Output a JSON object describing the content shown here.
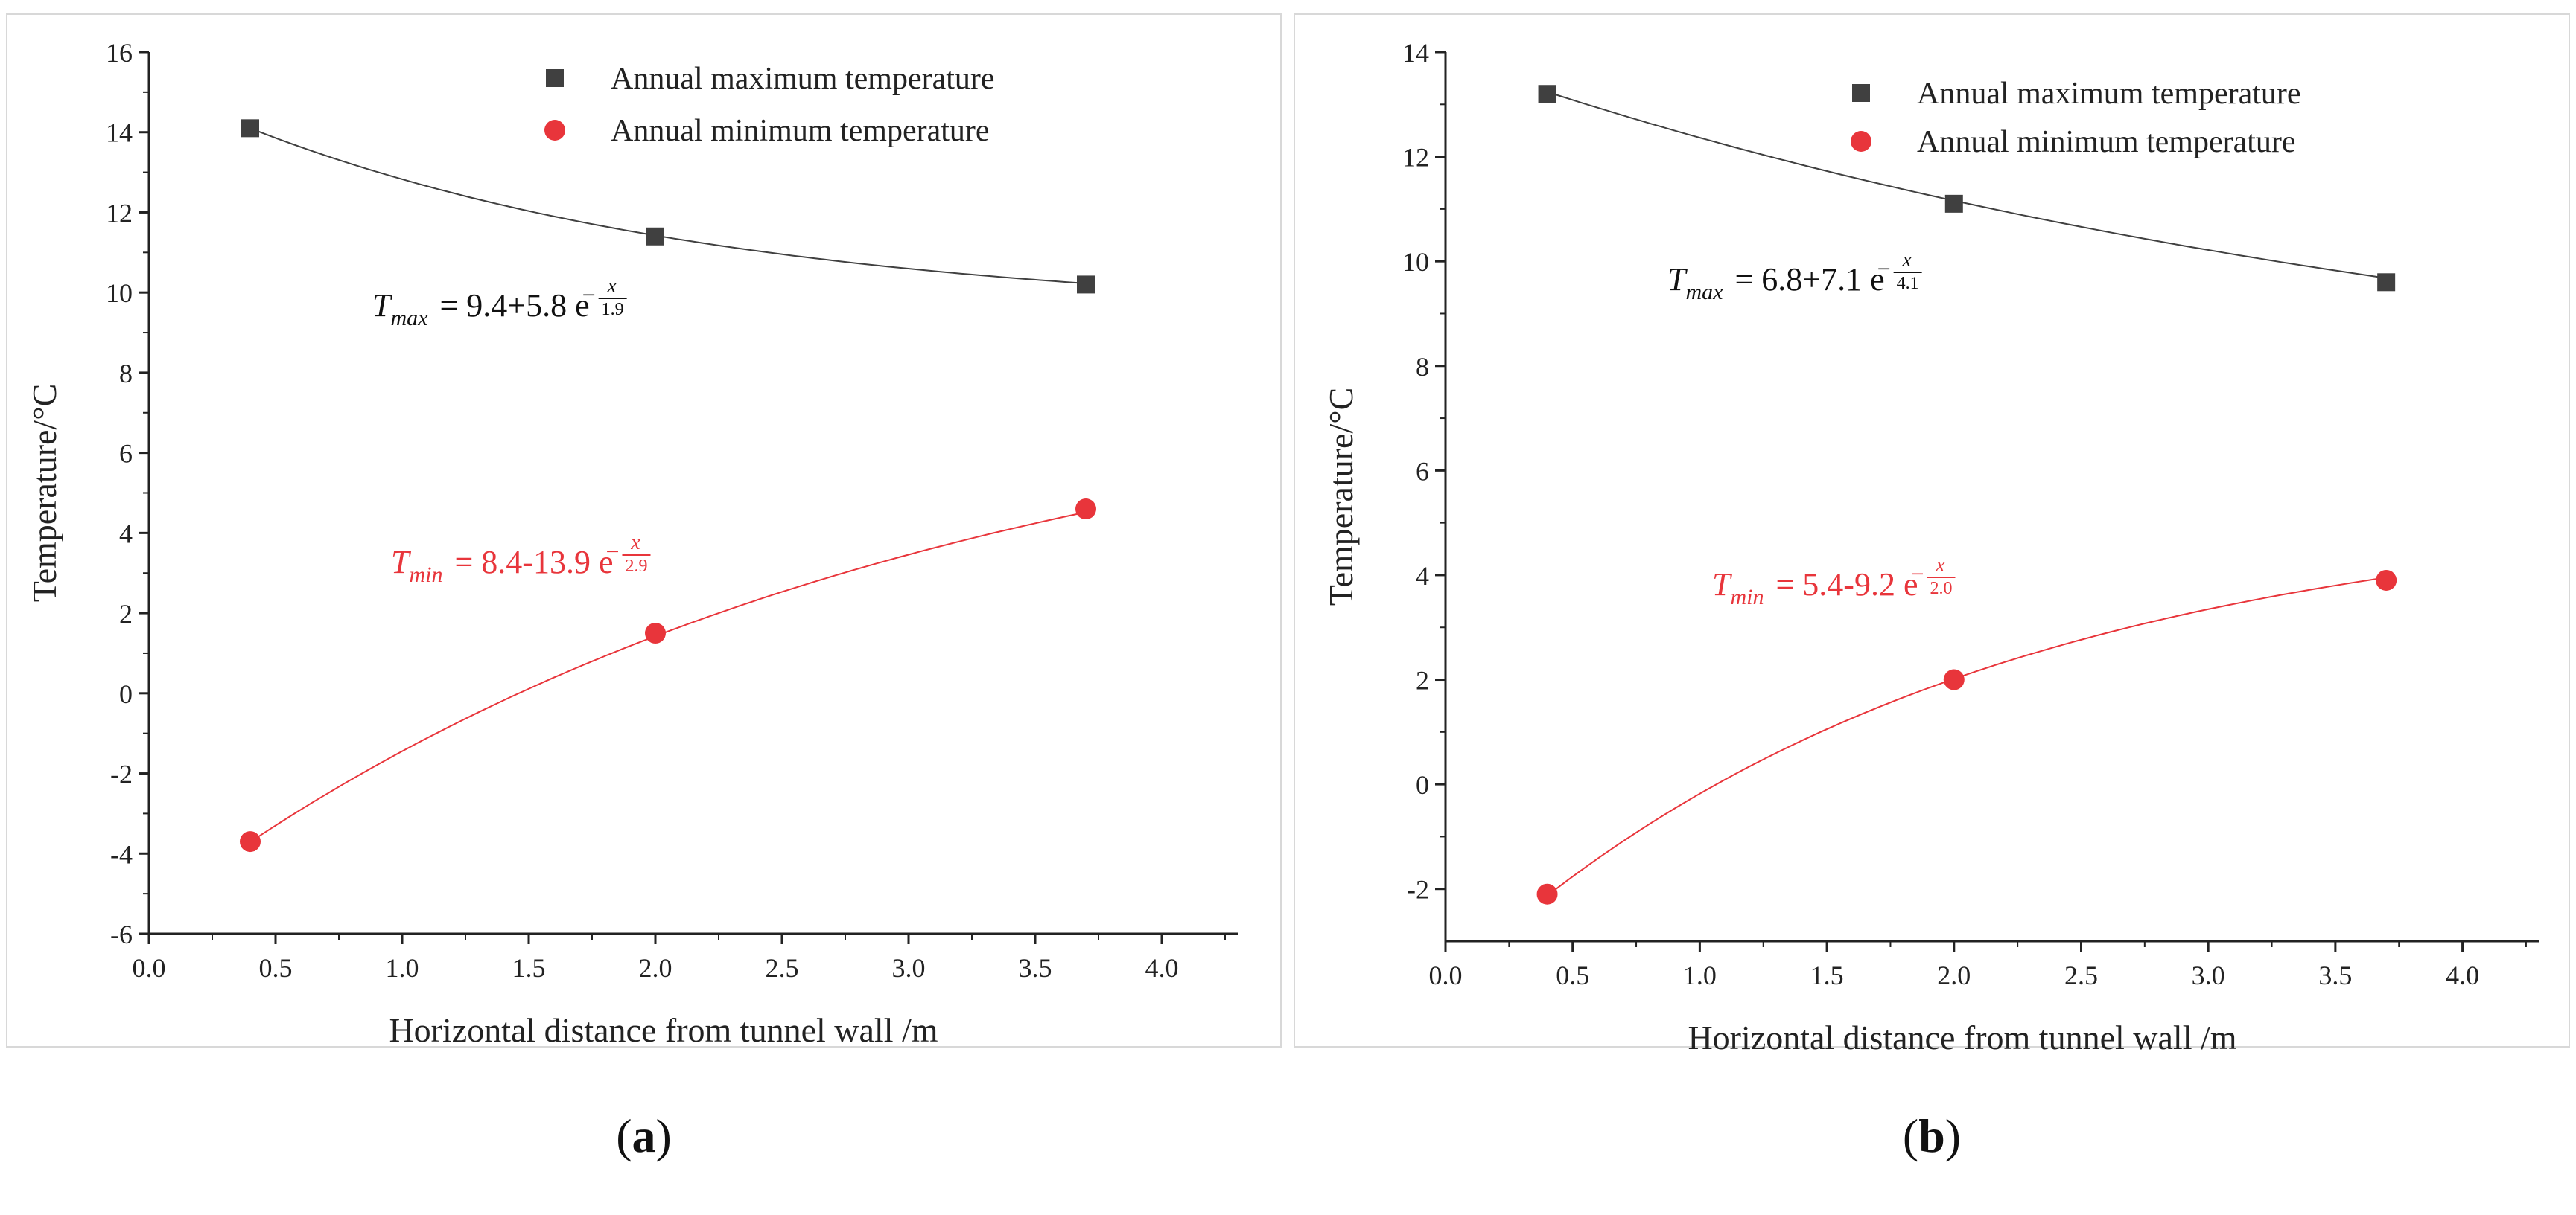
{
  "chart_data": [
    {
      "type": "scatter",
      "panel_label": "a",
      "xlabel": "Horizontal distance from tunnel wall /m",
      "ylabel": "Temperature/°C",
      "xlim": [
        0.0,
        4.3
      ],
      "ylim": [
        -6,
        16
      ],
      "xticks": [
        "0.0",
        "0.5",
        "1.0",
        "1.5",
        "2.0",
        "2.5",
        "3.0",
        "3.5",
        "4.0"
      ],
      "yticks": [
        "-6",
        "-4",
        "-2",
        "0",
        "2",
        "4",
        "6",
        "8",
        "10",
        "12",
        "14",
        "16"
      ],
      "grid": false,
      "legend_position": "top-right",
      "series": [
        {
          "name": "Annual maximum temperature",
          "color": "#404040",
          "marker": "square",
          "x": [
            0.4,
            2.0,
            3.7
          ],
          "y": [
            14.1,
            11.4,
            10.2
          ],
          "fit": {
            "a": 9.4,
            "b": 5.8,
            "c": 1.9
          }
        },
        {
          "name": "Annual minimum temperature",
          "color": "#e8353b",
          "marker": "circle",
          "x": [
            0.4,
            2.0,
            3.7
          ],
          "y": [
            -3.7,
            1.5,
            4.6
          ],
          "fit": {
            "a": 8.4,
            "b": -13.9,
            "c": 2.9
          }
        }
      ],
      "equations": [
        {
          "var": "T",
          "sub": "max",
          "expr": "= 9.4+5.8 e",
          "num": "x",
          "den": "1.9",
          "color": "#111111"
        },
        {
          "var": "T",
          "sub": "min",
          "expr": "= 8.4-13.9 e",
          "num": "x",
          "den": "2.9",
          "color": "#e8353b"
        }
      ]
    },
    {
      "type": "scatter",
      "panel_label": "b",
      "xlabel": "Horizontal distance from tunnel wall /m",
      "ylabel": "Temperature/°C",
      "xlim": [
        0.0,
        4.3
      ],
      "ylim": [
        -3,
        14
      ],
      "xticks": [
        "0.0",
        "0.5",
        "1.0",
        "1.5",
        "2.0",
        "2.5",
        "3.0",
        "3.5",
        "4.0"
      ],
      "yticks": [
        "-2",
        "0",
        "2",
        "4",
        "6",
        "8",
        "10",
        "12",
        "14"
      ],
      "grid": false,
      "legend_position": "top-right",
      "series": [
        {
          "name": "Annual maximum temperature",
          "color": "#404040",
          "marker": "square",
          "x": [
            0.4,
            2.0,
            3.7
          ],
          "y": [
            13.2,
            11.1,
            9.6
          ],
          "fit": {
            "a": 6.8,
            "b": 7.1,
            "c": 4.1
          }
        },
        {
          "name": "Annual minimum temperature",
          "color": "#e8353b",
          "marker": "circle",
          "x": [
            0.4,
            2.0,
            3.7
          ],
          "y": [
            -2.1,
            2.0,
            3.9
          ],
          "fit": {
            "a": 5.4,
            "b": -9.2,
            "c": 2.0
          }
        }
      ],
      "equations": [
        {
          "var": "T",
          "sub": "max",
          "expr": "= 6.8+7.1 e",
          "num": "x",
          "den": "4.1",
          "color": "#111111"
        },
        {
          "var": "T",
          "sub": "min",
          "expr": "= 5.4-9.2 e",
          "num": "x",
          "den": "2.0",
          "color": "#e8353b"
        }
      ]
    }
  ]
}
